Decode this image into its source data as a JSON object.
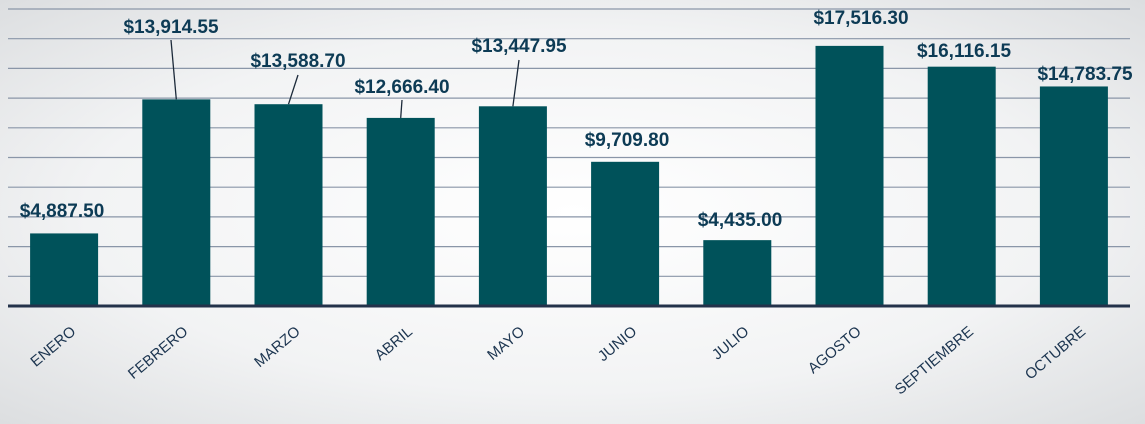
{
  "chart_data": {
    "type": "bar",
    "categories": [
      "ENERO",
      "FEBRERO",
      "MARZO",
      "ABRIL",
      "MAYO",
      "JUNIO",
      "JULIO",
      "AGOSTO",
      "SEPTIEMBRE",
      "OCTUBRE"
    ],
    "values": [
      4887.5,
      13914.55,
      13588.7,
      12666.4,
      13447.95,
      9709.8,
      4435.0,
      17516.3,
      16116.15,
      14783.75
    ],
    "value_labels": [
      "$4,887.50",
      "$13,914.55",
      "$13,588.70",
      "$12,666.40",
      "$13,447.95",
      "$9,709.80",
      "$4,435.00",
      "$17,516.30",
      "$16,116.15",
      "$14,783.75"
    ],
    "color": "#00525a",
    "ylim": [
      0,
      20000
    ],
    "yticks": [
      0,
      2000,
      4000,
      6000,
      8000,
      10000,
      12000,
      14000,
      16000,
      18000,
      20000
    ],
    "grid": true
  }
}
